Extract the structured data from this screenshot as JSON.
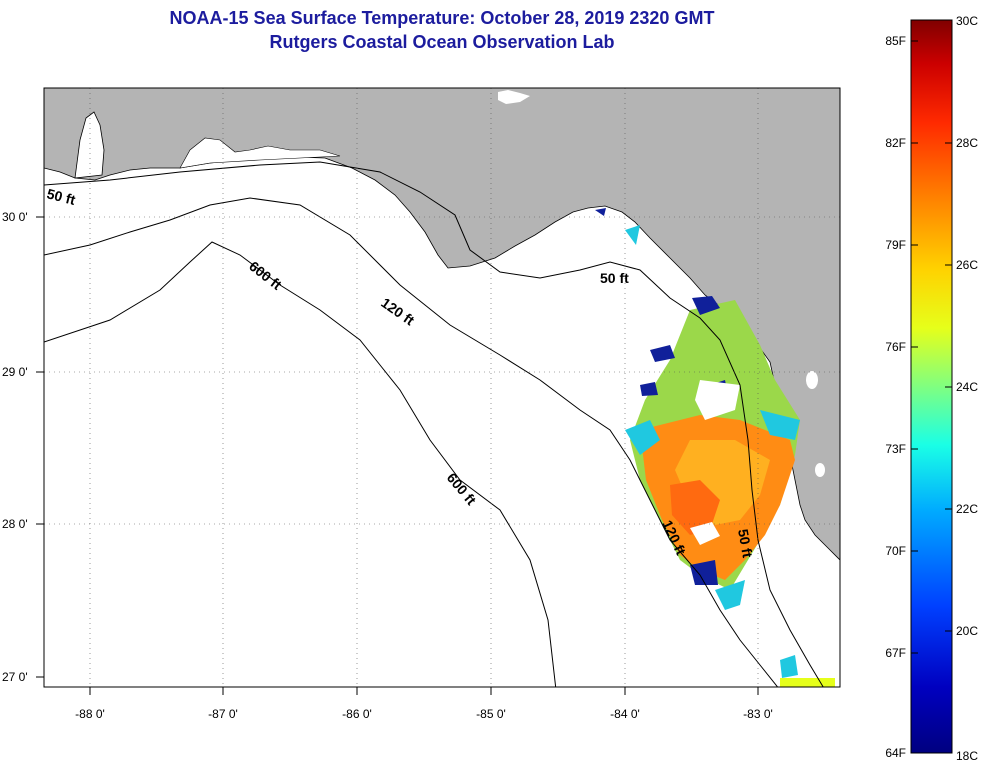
{
  "title": "NOAA-15 Sea Surface Temperature:  October 28, 2019 2320 GMT",
  "subtitle": "Rutgers Coastal Ocean Observation Lab",
  "lat_labels": [
    "30 0'",
    "29 0'",
    "28 0'",
    "27 0'"
  ],
  "lon_labels": [
    "-88 0'",
    "-87 0'",
    "-86 0'",
    "-85 0'",
    "-84 0'",
    "-83 0'"
  ],
  "contours": {
    "c50": "50 ft",
    "c120": "120 ft",
    "c600": "600 ft"
  },
  "colorbar": {
    "fahrenheit": [
      "85F",
      "82F",
      "79F",
      "76F",
      "73F",
      "70F",
      "67F",
      "64F"
    ],
    "celsius": [
      "30C",
      "28C",
      "26C",
      "24C",
      "22C",
      "20C",
      "18C"
    ],
    "stops": [
      "#800000",
      "#cc0000",
      "#ff2a00",
      "#ff7f00",
      "#ffd200",
      "#e6ff1a",
      "#80ff80",
      "#1affe6",
      "#00aaff",
      "#0040ff",
      "#0000c0",
      "#000080"
    ]
  },
  "colors": {
    "land": "#b4b4b4",
    "title": "#1c1c9e",
    "sst_warm": "#ff8c14",
    "sst_mid": "#9bd84a",
    "sst_cool": "#20c8e0",
    "sst_cold": "#10209a"
  }
}
